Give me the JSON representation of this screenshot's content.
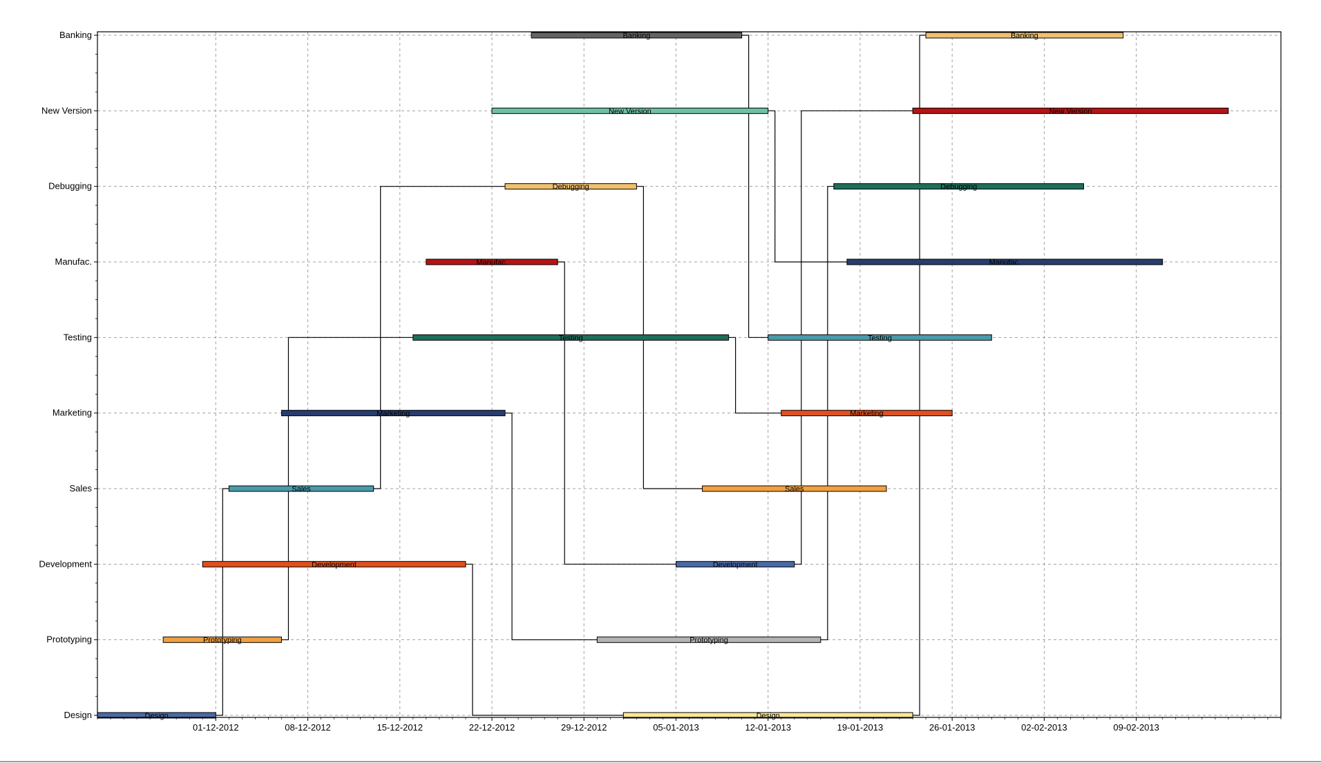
{
  "chart_data": {
    "type": "gantt",
    "title": "",
    "xlabel": "",
    "ylabel": "",
    "grid": true,
    "x_range": [
      "2012-11-22",
      "2013-02-20"
    ],
    "x_ticks": [
      {
        "date": "2012-12-01",
        "label": "01-12-2012"
      },
      {
        "date": "2012-12-08",
        "label": "08-12-2012"
      },
      {
        "date": "2012-12-15",
        "label": "15-12-2012"
      },
      {
        "date": "2012-12-22",
        "label": "22-12-2012"
      },
      {
        "date": "2012-12-29",
        "label": "29-12-2012"
      },
      {
        "date": "2013-01-05",
        "label": "05-01-2013"
      },
      {
        "date": "2013-01-12",
        "label": "12-01-2013"
      },
      {
        "date": "2013-01-19",
        "label": "19-01-2013"
      },
      {
        "date": "2013-01-26",
        "label": "26-01-2013"
      },
      {
        "date": "2013-02-02",
        "label": "02-02-2013"
      },
      {
        "date": "2013-02-09",
        "label": "09-02-2013"
      }
    ],
    "categories": [
      "Design",
      "Prototyping",
      "Development",
      "Sales",
      "Marketing",
      "Testing",
      "Manufac.",
      "Debugging",
      "New Version",
      "Banking"
    ],
    "tasks": [
      {
        "id": "design1",
        "category": "Design",
        "label": "Design",
        "start": "2012-11-22",
        "end": "2012-12-01",
        "color": "#4a6aa5"
      },
      {
        "id": "proto1",
        "category": "Prototyping",
        "label": "Prototyping",
        "start": "2012-11-27",
        "end": "2012-12-06",
        "color": "#f0a040"
      },
      {
        "id": "dev1",
        "category": "Development",
        "label": "Development",
        "start": "2012-11-30",
        "end": "2012-12-20",
        "color": "#e0501e"
      },
      {
        "id": "sales1",
        "category": "Sales",
        "label": "Sales",
        "start": "2012-12-02",
        "end": "2012-12-13",
        "color": "#4a9aaa"
      },
      {
        "id": "mkt1",
        "category": "Marketing",
        "label": "Marketing",
        "start": "2012-12-06",
        "end": "2012-12-23",
        "color": "#283c6e"
      },
      {
        "id": "test1",
        "category": "Testing",
        "label": "Testing",
        "start": "2012-12-16",
        "end": "2013-01-09",
        "color": "#1e6e5a"
      },
      {
        "id": "manu1",
        "category": "Manufac.",
        "label": "Manufac.",
        "start": "2012-12-17",
        "end": "2012-12-27",
        "color": "#b41414"
      },
      {
        "id": "debug1",
        "category": "Debugging",
        "label": "Debugging",
        "start": "2012-12-23",
        "end": "2013-01-02",
        "color": "#f0c070"
      },
      {
        "id": "newv1",
        "category": "New Version",
        "label": "New Version",
        "start": "2012-12-22",
        "end": "2013-01-12",
        "color": "#6ec0a4"
      },
      {
        "id": "bank1",
        "category": "Banking",
        "label": "Banking",
        "start": "2012-12-25",
        "end": "2013-01-10",
        "color": "#646464"
      },
      {
        "id": "design2",
        "category": "Design",
        "label": "Design",
        "start": "2013-01-01",
        "end": "2013-01-23",
        "color": "#fae696"
      },
      {
        "id": "proto2",
        "category": "Prototyping",
        "label": "Prototyping",
        "start": "2012-12-30",
        "end": "2013-01-16",
        "color": "#b4b4b4"
      },
      {
        "id": "dev2",
        "category": "Development",
        "label": "Development",
        "start": "2013-01-05",
        "end": "2013-01-14",
        "color": "#4a6aa5"
      },
      {
        "id": "sales2",
        "category": "Sales",
        "label": "Sales",
        "start": "2013-01-07",
        "end": "2013-01-21",
        "color": "#f0a040"
      },
      {
        "id": "mkt2",
        "category": "Marketing",
        "label": "Marketing",
        "start": "2013-01-13",
        "end": "2013-01-26",
        "color": "#e0501e"
      },
      {
        "id": "test2",
        "category": "Testing",
        "label": "Testing",
        "start": "2013-01-12",
        "end": "2013-01-29",
        "color": "#4a9aaa"
      },
      {
        "id": "manu2",
        "category": "Manufac.",
        "label": "Manufac.",
        "start": "2013-01-18",
        "end": "2013-02-11",
        "color": "#283c6e"
      },
      {
        "id": "debug2",
        "category": "Debugging",
        "label": "Debugging",
        "start": "2013-01-17",
        "end": "2013-02-05",
        "color": "#1e6e5a"
      },
      {
        "id": "newv2",
        "category": "New Version",
        "label": "New Version",
        "start": "2013-01-23",
        "end": "2013-02-16",
        "color": "#b41414"
      },
      {
        "id": "bank2",
        "category": "Banking",
        "label": "Banking",
        "start": "2013-01-24",
        "end": "2013-02-08",
        "color": "#f0c070"
      }
    ],
    "links": [
      [
        "design1",
        "sales1"
      ],
      [
        "proto1",
        "test1"
      ],
      [
        "sales1",
        "debug1"
      ],
      [
        "dev1",
        "design2"
      ],
      [
        "mkt1",
        "proto2"
      ],
      [
        "manu1",
        "dev2"
      ],
      [
        "debug1",
        "sales2"
      ],
      [
        "test1",
        "mkt2"
      ],
      [
        "bank1",
        "test2"
      ],
      [
        "newv1",
        "manu2"
      ],
      [
        "proto2",
        "debug2"
      ],
      [
        "dev2",
        "newv2"
      ],
      [
        "design2",
        "bank2"
      ]
    ]
  }
}
